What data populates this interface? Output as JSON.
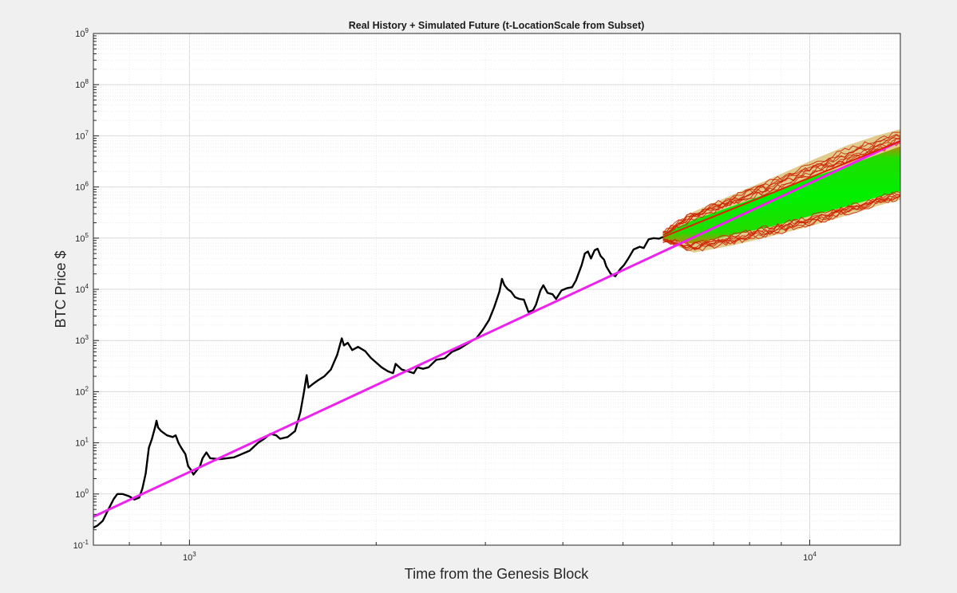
{
  "chart_data": {
    "type": "line",
    "title": "Real History + Simulated Future (t-LocationScale from Subset)",
    "xlabel": "Time from the Genesis Block",
    "ylabel": "BTC Price $",
    "x_scale": "log",
    "y_scale": "log",
    "xlim": [
      700,
      14000
    ],
    "ylim": [
      0.1,
      1000000000
    ],
    "grid": true,
    "minor_grid": true,
    "x_tick_labels": [
      {
        "value": 1000,
        "base": "10",
        "exp": "3"
      },
      {
        "value": 10000,
        "base": "10",
        "exp": "4"
      }
    ],
    "y_tick_labels": [
      {
        "value": 0.1,
        "base": "10",
        "exp": "-1"
      },
      {
        "value": 1,
        "base": "10",
        "exp": "0"
      },
      {
        "value": 10,
        "base": "10",
        "exp": "1"
      },
      {
        "value": 100,
        "base": "10",
        "exp": "2"
      },
      {
        "value": 1000,
        "base": "10",
        "exp": "3"
      },
      {
        "value": 10000,
        "base": "10",
        "exp": "4"
      },
      {
        "value": 100000,
        "base": "10",
        "exp": "5"
      },
      {
        "value": 1000000,
        "base": "10",
        "exp": "6"
      },
      {
        "value": 10000000,
        "base": "10",
        "exp": "7"
      },
      {
        "value": 100000000,
        "base": "10",
        "exp": "8"
      },
      {
        "value": 1000000000,
        "base": "10",
        "exp": "9"
      }
    ],
    "series": [
      {
        "color": "#000000",
        "style": "historical price",
        "points": [
          [
            700,
            0.22
          ],
          [
            710,
            0.24
          ],
          [
            725,
            0.3
          ],
          [
            740,
            0.5
          ],
          [
            755,
            0.8
          ],
          [
            765,
            1.0
          ],
          [
            780,
            1.0
          ],
          [
            800,
            0.9
          ],
          [
            815,
            0.78
          ],
          [
            830,
            0.85
          ],
          [
            840,
            1.3
          ],
          [
            850,
            2.5
          ],
          [
            860,
            8
          ],
          [
            870,
            12
          ],
          [
            880,
            20
          ],
          [
            885,
            27
          ],
          [
            890,
            20
          ],
          [
            900,
            17
          ],
          [
            920,
            14
          ],
          [
            940,
            13
          ],
          [
            950,
            14
          ],
          [
            960,
            10
          ],
          [
            970,
            8
          ],
          [
            985,
            6
          ],
          [
            995,
            3.5
          ],
          [
            1005,
            3
          ],
          [
            1015,
            2.4
          ],
          [
            1025,
            2.8
          ],
          [
            1040,
            3.5
          ],
          [
            1050,
            5
          ],
          [
            1065,
            6.5
          ],
          [
            1080,
            5
          ],
          [
            1120,
            4.8
          ],
          [
            1180,
            5.2
          ],
          [
            1250,
            7
          ],
          [
            1290,
            10
          ],
          [
            1320,
            12
          ],
          [
            1350,
            15
          ],
          [
            1380,
            14
          ],
          [
            1400,
            12
          ],
          [
            1440,
            13
          ],
          [
            1480,
            17
          ],
          [
            1510,
            40
          ],
          [
            1530,
            100
          ],
          [
            1545,
            210
          ],
          [
            1555,
            120
          ],
          [
            1580,
            140
          ],
          [
            1610,
            165
          ],
          [
            1650,
            200
          ],
          [
            1690,
            270
          ],
          [
            1730,
            520
          ],
          [
            1760,
            1100
          ],
          [
            1775,
            800
          ],
          [
            1800,
            900
          ],
          [
            1830,
            650
          ],
          [
            1870,
            750
          ],
          [
            1920,
            620
          ],
          [
            1960,
            460
          ],
          [
            2000,
            370
          ],
          [
            2040,
            300
          ],
          [
            2090,
            250
          ],
          [
            2130,
            230
          ],
          [
            2150,
            350
          ],
          [
            2200,
            270
          ],
          [
            2250,
            250
          ],
          [
            2300,
            230
          ],
          [
            2330,
            300
          ],
          [
            2380,
            280
          ],
          [
            2430,
            300
          ],
          [
            2500,
            420
          ],
          [
            2580,
            450
          ],
          [
            2650,
            600
          ],
          [
            2730,
            700
          ],
          [
            2820,
            900
          ],
          [
            2900,
            1100
          ],
          [
            2970,
            1600
          ],
          [
            3040,
            2500
          ],
          [
            3100,
            4500
          ],
          [
            3160,
            9000
          ],
          [
            3190,
            16000
          ],
          [
            3220,
            12000
          ],
          [
            3260,
            10000
          ],
          [
            3300,
            9000
          ],
          [
            3350,
            7000
          ],
          [
            3400,
            6500
          ],
          [
            3460,
            6300
          ],
          [
            3520,
            3600
          ],
          [
            3580,
            3900
          ],
          [
            3620,
            5000
          ],
          [
            3680,
            9500
          ],
          [
            3720,
            12000
          ],
          [
            3780,
            8500
          ],
          [
            3850,
            8000
          ],
          [
            3900,
            6500
          ],
          [
            3980,
            9500
          ],
          [
            4060,
            10500
          ],
          [
            4140,
            11000
          ],
          [
            4200,
            15000
          ],
          [
            4290,
            30000
          ],
          [
            4340,
            50000
          ],
          [
            4390,
            55000
          ],
          [
            4440,
            40000
          ],
          [
            4500,
            58000
          ],
          [
            4550,
            62000
          ],
          [
            4600,
            45000
          ],
          [
            4660,
            38000
          ],
          [
            4700,
            28000
          ],
          [
            4780,
            20000
          ],
          [
            4860,
            18000
          ],
          [
            4950,
            25000
          ],
          [
            5020,
            30000
          ],
          [
            5100,
            40000
          ],
          [
            5200,
            60000
          ],
          [
            5320,
            68000
          ],
          [
            5400,
            64000
          ],
          [
            5500,
            95000
          ],
          [
            5600,
            100000
          ],
          [
            5720,
            98000
          ],
          [
            5800,
            105000
          ]
        ]
      },
      {
        "color": "#ee22ee",
        "style": "power-law fit",
        "points": [
          [
            700,
            0.36
          ],
          [
            14000,
            7900000
          ]
        ]
      },
      {
        "color": "#dd2200",
        "style": "simulated median",
        "points": [
          [
            5800,
            105000
          ],
          [
            14000,
            7900000
          ]
        ]
      }
    ],
    "simulation_band": {
      "fill_color": "#00ee00",
      "edge_color": "#cc2200",
      "x": [
        5800,
        6500,
        7500,
        8700,
        10000,
        11500,
        12800,
        14000
      ],
      "inner_low": [
        95000,
        78000,
        115000,
        170000,
        270000,
        420000,
        620000,
        820000
      ],
      "inner_high": [
        120000,
        230000,
        420000,
        800000,
        1500000,
        2600000,
        4200000,
        6200000
      ],
      "outer_low": [
        88000,
        52000,
        72000,
        110000,
        170000,
        280000,
        420000,
        560000
      ],
      "outer_high": [
        135000,
        330000,
        700000,
        1500000,
        3200000,
        6500000,
        10000000,
        13500000
      ]
    }
  }
}
